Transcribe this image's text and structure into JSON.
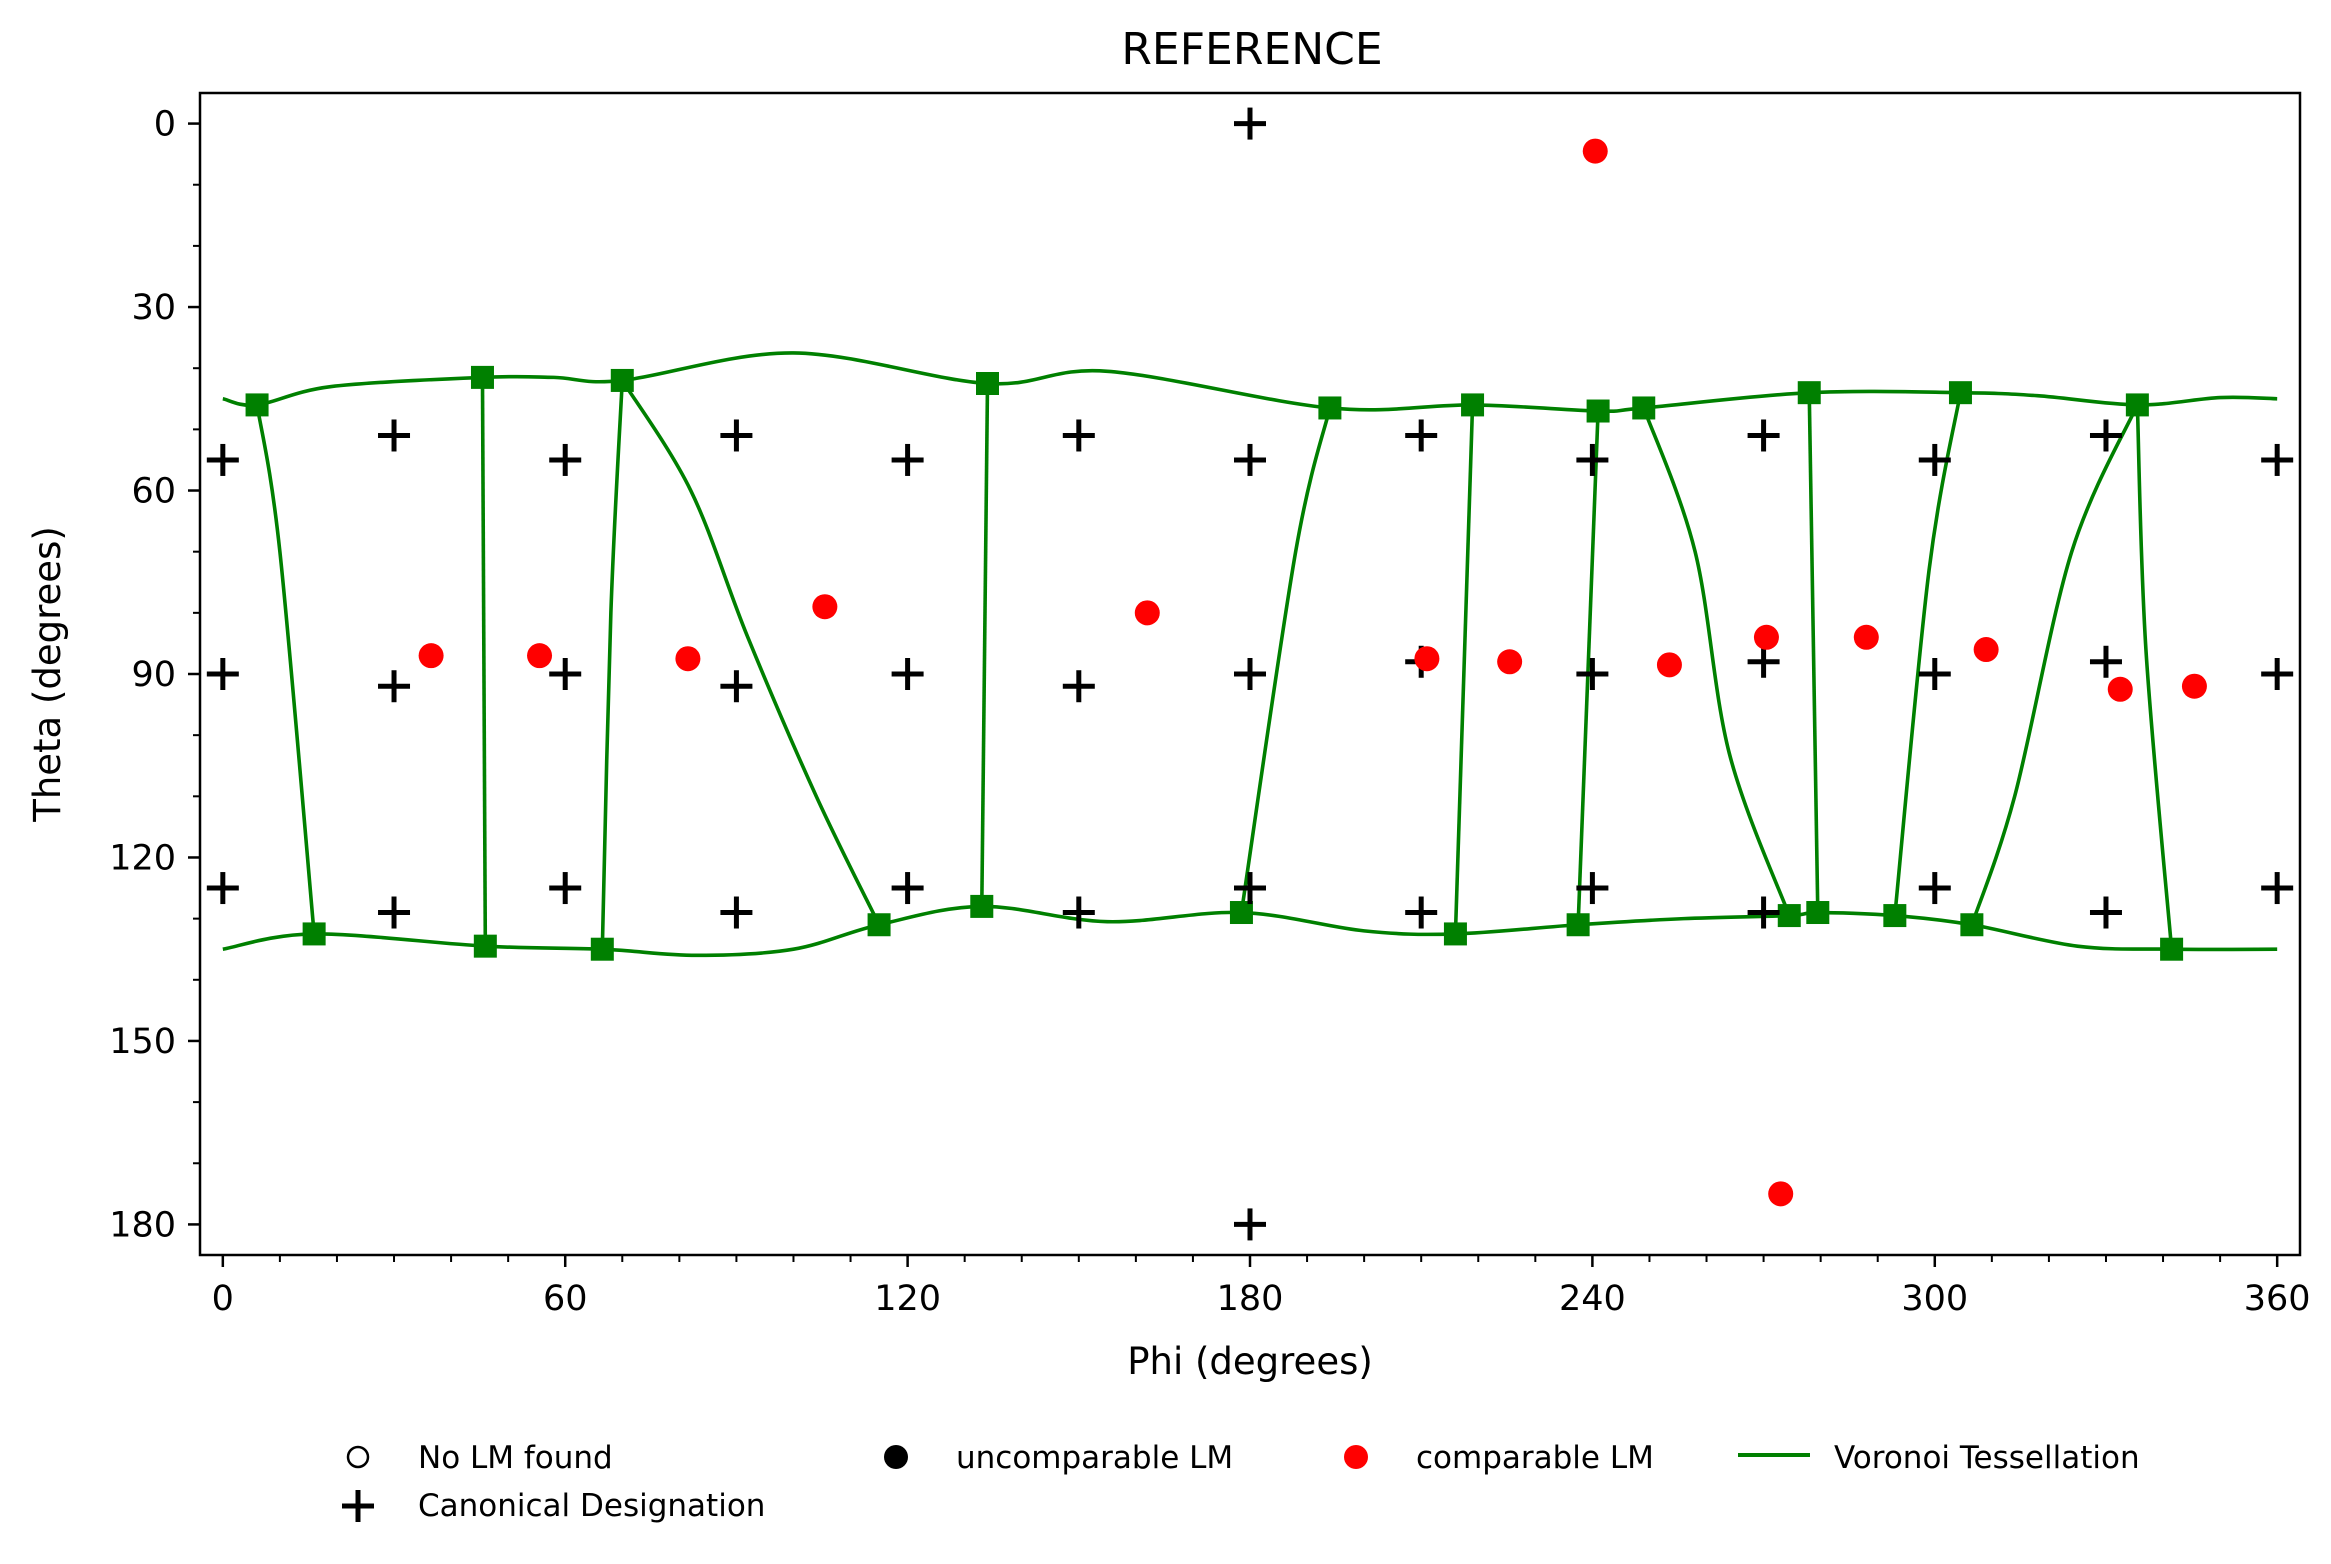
{
  "chart_data": {
    "type": "scatter",
    "title": "REFERENCE",
    "xlabel": "Phi (degrees)",
    "ylabel": "Theta (degrees)",
    "xlim": [
      -4,
      364
    ],
    "ylim": [
      185,
      -5
    ],
    "y_inverted": true,
    "grid": false,
    "legend_position": "bottom",
    "x_ticks": [
      0,
      60,
      120,
      180,
      240,
      300,
      360
    ],
    "y_ticks": [
      0,
      30,
      60,
      90,
      120,
      150,
      180
    ],
    "x_tick_labels": [
      "0",
      "60",
      "120",
      "180",
      "240",
      "300",
      "360"
    ],
    "y_tick_labels": [
      "0",
      "30",
      "60",
      "90",
      "120",
      "150",
      "180"
    ],
    "colors": {
      "comparable": "#ff0000",
      "voronoi": "#008000",
      "canonical": "#000000"
    },
    "legend": [
      {
        "label": "No LM found",
        "marker": "open-circle"
      },
      {
        "label": "uncomparable LM",
        "marker": "filled-circle-black"
      },
      {
        "label": "comparable LM",
        "marker": "filled-circle-red"
      },
      {
        "label": "Voronoi Tessellation",
        "marker": "green-line"
      },
      {
        "label": "Canonical Designation",
        "marker": "plus"
      }
    ],
    "series": [
      {
        "name": "Canonical Designation",
        "points": [
          [
            180,
            0
          ],
          [
            0,
            55
          ],
          [
            30,
            51
          ],
          [
            60,
            55
          ],
          [
            90,
            51
          ],
          [
            120,
            55
          ],
          [
            150,
            51
          ],
          [
            180,
            55
          ],
          [
            210,
            51
          ],
          [
            240,
            55
          ],
          [
            270,
            51
          ],
          [
            300,
            55
          ],
          [
            330,
            51
          ],
          [
            360,
            55
          ],
          [
            0,
            90
          ],
          [
            30,
            92
          ],
          [
            60,
            90
          ],
          [
            90,
            92
          ],
          [
            120,
            90
          ],
          [
            150,
            92
          ],
          [
            180,
            90
          ],
          [
            210,
            88
          ],
          [
            240,
            90
          ],
          [
            270,
            88
          ],
          [
            300,
            90
          ],
          [
            330,
            88
          ],
          [
            360,
            90
          ],
          [
            0,
            125
          ],
          [
            30,
            129
          ],
          [
            60,
            125
          ],
          [
            90,
            129
          ],
          [
            120,
            125
          ],
          [
            150,
            129
          ],
          [
            180,
            125
          ],
          [
            210,
            129
          ],
          [
            240,
            125
          ],
          [
            270,
            129
          ],
          [
            300,
            125
          ],
          [
            330,
            129
          ],
          [
            360,
            125
          ],
          [
            180,
            180
          ]
        ]
      },
      {
        "name": "comparable LM",
        "points": [
          [
            240.5,
            4.5
          ],
          [
            36.5,
            87
          ],
          [
            55.5,
            87
          ],
          [
            81.5,
            87.5
          ],
          [
            105.5,
            79
          ],
          [
            162,
            80
          ],
          [
            211,
            87.5
          ],
          [
            225.5,
            88
          ],
          [
            253.5,
            88.5
          ],
          [
            270.5,
            84
          ],
          [
            288,
            84
          ],
          [
            309,
            86
          ],
          [
            332.5,
            92.5
          ],
          [
            345.5,
            92
          ],
          [
            273,
            175
          ]
        ]
      },
      {
        "name": "Voronoi Tessellation",
        "vertices": [
          [
            6,
            46
          ],
          [
            16,
            132.5
          ],
          [
            45.5,
            41.5
          ],
          [
            46,
            134.5
          ],
          [
            70,
            42
          ],
          [
            66.5,
            135
          ],
          [
            115,
            131
          ],
          [
            133,
            128
          ],
          [
            134,
            42.5
          ],
          [
            178.5,
            129
          ],
          [
            194,
            46.5
          ],
          [
            219,
            46
          ],
          [
            216,
            132.5
          ],
          [
            241,
            47
          ],
          [
            237.5,
            131
          ],
          [
            249,
            46.5
          ],
          [
            274.5,
            129.5
          ],
          [
            278,
            44
          ],
          [
            279.5,
            129
          ],
          [
            293,
            129.5
          ],
          [
            304.5,
            44
          ],
          [
            306.5,
            131
          ],
          [
            335.5,
            46
          ],
          [
            341.5,
            135
          ]
        ],
        "edges": [
          [
            [
              0,
              45
            ],
            [
              6,
              46
            ],
            [
              19,
              43
            ],
            [
              45.5,
              41.5
            ],
            [
              58,
              41.5
            ],
            [
              70,
              42
            ],
            [
              100,
              37.5
            ],
            [
              134,
              42.5
            ],
            [
              155,
              40.5
            ],
            [
              194,
              46.5
            ],
            [
              219,
              46
            ],
            [
              241,
              47
            ],
            [
              249,
              46.5
            ],
            [
              278,
              44
            ],
            [
              304.5,
              44
            ],
            [
              318,
              44.5
            ],
            [
              335.5,
              46
            ],
            [
              350,
              44.8
            ],
            [
              360,
              45
            ]
          ],
          [
            [
              0,
              135
            ],
            [
              16,
              132.5
            ],
            [
              46,
              134.5
            ],
            [
              66.5,
              135
            ],
            [
              83,
              136
            ],
            [
              100,
              135
            ],
            [
              115,
              131
            ],
            [
              133,
              128
            ],
            [
              155,
              130.5
            ],
            [
              178.5,
              129
            ],
            [
              200,
              132
            ],
            [
              216,
              132.5
            ],
            [
              237.5,
              131
            ],
            [
              256,
              130
            ],
            [
              274.5,
              129.5
            ],
            [
              279.5,
              129
            ],
            [
              293,
              129.5
            ],
            [
              306.5,
              131
            ],
            [
              325,
              134.5
            ],
            [
              341.5,
              135
            ],
            [
              360,
              135
            ]
          ],
          [
            [
              6,
              46
            ],
            [
              10,
              70
            ],
            [
              16,
              132.5
            ]
          ],
          [
            [
              45.5,
              41.5
            ],
            [
              46,
              134.5
            ]
          ],
          [
            [
              70,
              42
            ],
            [
              68,
              80
            ],
            [
              66.5,
              135
            ]
          ],
          [
            [
              70,
              42
            ],
            [
              82,
              60
            ],
            [
              92,
              84
            ],
            [
              104,
              110
            ],
            [
              115,
              131
            ]
          ],
          [
            [
              134,
              42.5
            ],
            [
              133,
              128
            ]
          ],
          [
            [
              194,
              46.5
            ],
            [
              188,
              70
            ],
            [
              178.5,
              129
            ]
          ],
          [
            [
              219,
              46
            ],
            [
              216,
              132.5
            ]
          ],
          [
            [
              241,
              47
            ],
            [
              237.5,
              131
            ]
          ],
          [
            [
              249,
              46.5
            ],
            [
              258,
              70
            ],
            [
              264,
              103
            ],
            [
              274.5,
              129.5
            ]
          ],
          [
            [
              278,
              44
            ],
            [
              279.5,
              129
            ]
          ],
          [
            [
              304.5,
              44
            ],
            [
              299,
              73
            ],
            [
              293,
              129.5
            ]
          ],
          [
            [
              335.5,
              46
            ],
            [
              324,
              70
            ],
            [
              314,
              110
            ],
            [
              306.5,
              131
            ]
          ],
          [
            [
              335.5,
              46
            ],
            [
              337,
              86
            ],
            [
              341.5,
              135
            ]
          ]
        ]
      }
    ]
  }
}
